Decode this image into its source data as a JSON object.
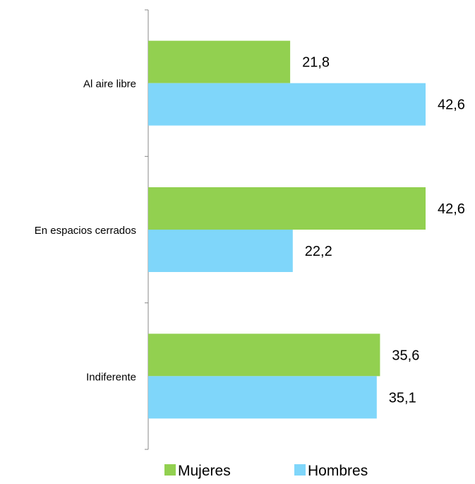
{
  "chart_data": {
    "type": "bar",
    "orientation": "horizontal",
    "categories": [
      "Al aire libre",
      "En espacios cerrados",
      "Indiferente"
    ],
    "series": [
      {
        "name": "Mujeres",
        "values": [
          21.8,
          42.6,
          35.6
        ],
        "labels": [
          "21,8",
          "42,6",
          "35,6"
        ],
        "color": "#92D050"
      },
      {
        "name": "Hombres",
        "values": [
          42.6,
          22.2,
          35.1
        ],
        "labels": [
          "42,6",
          "22,2",
          "35,1"
        ],
        "color": "#7FD6FA"
      }
    ],
    "title": "",
    "xlabel": "",
    "ylabel": "",
    "xlim": [
      0,
      42.6
    ],
    "grid": false,
    "legend": "bottom"
  }
}
